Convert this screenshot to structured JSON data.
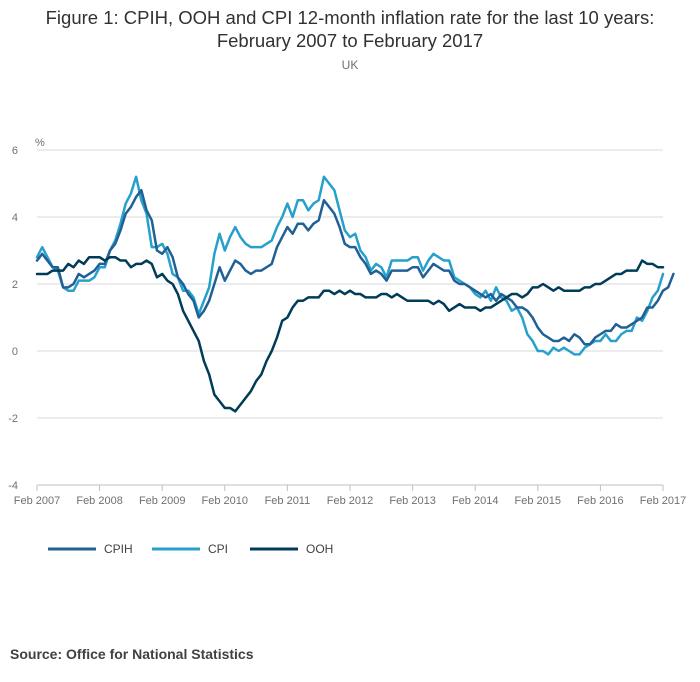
{
  "chart_data": {
    "type": "line",
    "title_lines": [
      "Figure 1: CPIH, OOH and CPI 12-month inflation rate for the last 10 years:",
      "February 2007 to February 2017"
    ],
    "subtitle": "UK",
    "ylabel": "%",
    "ylim": [
      -4,
      6
    ],
    "yticks": [
      -4,
      -2,
      0,
      2,
      4,
      6
    ],
    "xlim": [
      0,
      120
    ],
    "xticks": [
      {
        "label": "Feb 2007",
        "x": 0
      },
      {
        "label": "Feb 2008",
        "x": 12
      },
      {
        "label": "Feb 2009",
        "x": 24
      },
      {
        "label": "Feb 2010",
        "x": 36
      },
      {
        "label": "Feb 2011",
        "x": 48
      },
      {
        "label": "Feb 2012",
        "x": 60
      },
      {
        "label": "Feb 2013",
        "x": 72
      },
      {
        "label": "Feb 2014",
        "x": 84
      },
      {
        "label": "Feb 2015",
        "x": 96
      },
      {
        "label": "Feb 2016",
        "x": 108
      },
      {
        "label": "Feb 2017",
        "x": 120
      }
    ],
    "x_unit": "months since Feb 2007",
    "grid": true,
    "legend_position": "bottom-left",
    "series": [
      {
        "name": "CPIH",
        "color": "#206095",
        "values": [
          2.7,
          2.9,
          2.7,
          2.5,
          2.5,
          1.9,
          1.9,
          2.0,
          2.3,
          2.2,
          2.3,
          2.4,
          2.6,
          2.6,
          3.0,
          3.2,
          3.6,
          4.1,
          4.3,
          4.6,
          4.8,
          4.2,
          3.9,
          3.0,
          2.9,
          3.1,
          2.8,
          2.2,
          2.0,
          1.7,
          1.5,
          1.0,
          1.2,
          1.5,
          2.0,
          2.5,
          2.1,
          2.4,
          2.7,
          2.6,
          2.4,
          2.3,
          2.4,
          2.4,
          2.5,
          2.6,
          3.1,
          3.4,
          3.7,
          3.5,
          3.8,
          3.8,
          3.6,
          3.8,
          3.9,
          4.5,
          4.3,
          4.1,
          3.7,
          3.2,
          3.1,
          3.1,
          2.8,
          2.6,
          2.3,
          2.4,
          2.3,
          2.1,
          2.4,
          2.4,
          2.4,
          2.4,
          2.5,
          2.5,
          2.2,
          2.4,
          2.6,
          2.5,
          2.4,
          2.4,
          2.1,
          2.0,
          2.0,
          1.9,
          1.8,
          1.7,
          1.6,
          1.7,
          1.5,
          1.7,
          1.6,
          1.5,
          1.3,
          1.3,
          1.2,
          1.0,
          0.7,
          0.5,
          0.4,
          0.3,
          0.3,
          0.4,
          0.3,
          0.5,
          0.4,
          0.2,
          0.2,
          0.4,
          0.5,
          0.6,
          0.6,
          0.8,
          0.7,
          0.7,
          0.8,
          0.9,
          1.0,
          1.3,
          1.3,
          1.5,
          1.8,
          1.9,
          2.3
        ]
      },
      {
        "name": "CPI",
        "color": "#27a0cc",
        "values": [
          2.8,
          3.1,
          2.8,
          2.5,
          2.4,
          1.9,
          1.8,
          1.8,
          2.1,
          2.1,
          2.1,
          2.2,
          2.5,
          2.5,
          3.0,
          3.3,
          3.8,
          4.4,
          4.7,
          5.2,
          4.5,
          4.1,
          3.1,
          3.1,
          3.2,
          2.9,
          2.3,
          2.2,
          1.8,
          1.8,
          1.6,
          1.1,
          1.5,
          1.9,
          2.9,
          3.5,
          3.0,
          3.4,
          3.7,
          3.4,
          3.2,
          3.1,
          3.1,
          3.1,
          3.2,
          3.3,
          3.7,
          4.0,
          4.4,
          4.0,
          4.5,
          4.5,
          4.2,
          4.4,
          4.5,
          5.2,
          5.0,
          4.8,
          4.2,
          3.6,
          3.4,
          3.5,
          3.0,
          2.8,
          2.4,
          2.6,
          2.5,
          2.2,
          2.7,
          2.7,
          2.7,
          2.7,
          2.8,
          2.8,
          2.4,
          2.7,
          2.9,
          2.8,
          2.7,
          2.7,
          2.2,
          2.1,
          2.0,
          1.9,
          1.7,
          1.6,
          1.8,
          1.5,
          1.9,
          1.6,
          1.5,
          1.2,
          1.3,
          1.0,
          0.5,
          0.3,
          0.0,
          0.0,
          -0.1,
          0.1,
          0.0,
          0.1,
          0.0,
          -0.1,
          -0.1,
          0.1,
          0.2,
          0.3,
          0.3,
          0.5,
          0.3,
          0.3,
          0.5,
          0.6,
          0.6,
          1.0,
          0.9,
          1.2,
          1.6,
          1.8,
          2.3
        ]
      },
      {
        "name": "OOH",
        "color": "#003c57",
        "values": [
          2.3,
          2.3,
          2.3,
          2.4,
          2.4,
          2.4,
          2.6,
          2.5,
          2.7,
          2.6,
          2.8,
          2.8,
          2.8,
          2.7,
          2.8,
          2.8,
          2.7,
          2.7,
          2.5,
          2.6,
          2.6,
          2.7,
          2.6,
          2.2,
          2.3,
          2.1,
          2.0,
          1.7,
          1.2,
          0.9,
          0.6,
          0.3,
          -0.3,
          -0.7,
          -1.3,
          -1.5,
          -1.7,
          -1.7,
          -1.8,
          -1.6,
          -1.4,
          -1.2,
          -0.9,
          -0.7,
          -0.3,
          0.0,
          0.4,
          0.9,
          1.0,
          1.3,
          1.5,
          1.5,
          1.6,
          1.6,
          1.6,
          1.8,
          1.8,
          1.7,
          1.8,
          1.7,
          1.8,
          1.7,
          1.7,
          1.6,
          1.6,
          1.6,
          1.7,
          1.7,
          1.6,
          1.7,
          1.6,
          1.5,
          1.5,
          1.5,
          1.5,
          1.5,
          1.4,
          1.5,
          1.4,
          1.2,
          1.3,
          1.4,
          1.3,
          1.3,
          1.3,
          1.2,
          1.3,
          1.3,
          1.4,
          1.5,
          1.6,
          1.7,
          1.7,
          1.6,
          1.7,
          1.9,
          1.9,
          2.0,
          1.9,
          1.8,
          1.9,
          1.8,
          1.8,
          1.8,
          1.8,
          1.9,
          1.9,
          2.0,
          2.0,
          2.1,
          2.2,
          2.3,
          2.3,
          2.4,
          2.4,
          2.4,
          2.7,
          2.6,
          2.6,
          2.5,
          2.5
        ]
      }
    ]
  },
  "footer": {
    "source": "Source: Office for National Statistics"
  }
}
